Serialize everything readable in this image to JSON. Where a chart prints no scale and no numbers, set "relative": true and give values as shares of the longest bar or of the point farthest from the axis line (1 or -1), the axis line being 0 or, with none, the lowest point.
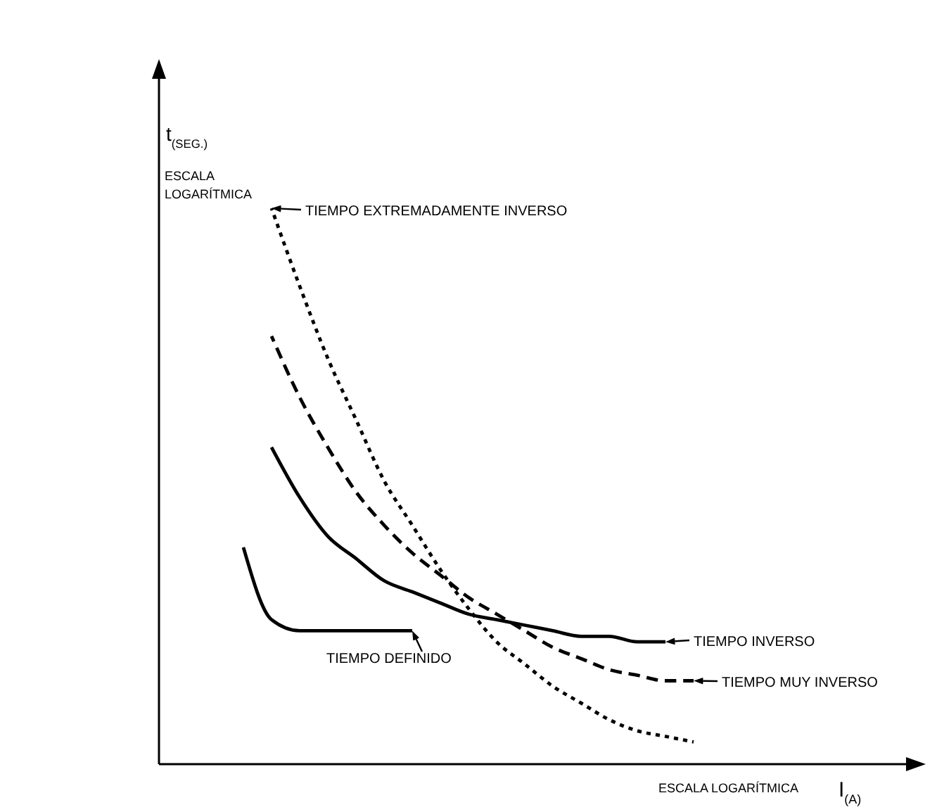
{
  "chart_data": {
    "type": "line",
    "relative": true,
    "xlabel": "I$_{(A)}$",
    "ylabel": "t$_{(SEG.)}$",
    "annotations": [
      "ESCALA\nLOGARÍTMICA",
      "ESCALA LOGARÍTMICA"
    ],
    "legend": "right",
    "categories": [
      null,
      null,
      null,
      null,
      null,
      null,
      null,
      null,
      null,
      null,
      null,
      null,
      null,
      null,
      null,
      null,
      null,
      null,
      null,
      null,
      null
    ],
    "series": [
      {
        "name": "TIEMPO EXTREMADAMENTE INVERSO",
        "color": "#000000",
        "line_style": "dotted",
        "values": [
          null,
          null,
          null,
          null,
          1.0,
          0.86,
          0.73,
          0.62,
          0.51,
          0.43,
          0.35,
          0.28,
          0.22,
          0.18,
          0.14,
          0.11,
          0.08,
          0.06,
          0.05,
          0.04,
          null
        ]
      },
      {
        "name": "TIEMPO MUY INVERSO",
        "color": "#000000",
        "line_style": "dashed",
        "values": [
          null,
          null,
          null,
          null,
          0.77,
          0.66,
          0.57,
          0.49,
          0.43,
          0.38,
          0.34,
          0.3,
          0.27,
          0.24,
          0.21,
          0.19,
          0.17,
          0.16,
          0.15,
          0.15,
          null
        ]
      },
      {
        "name": "TIEMPO INVERSO",
        "color": "#000000",
        "line_style": "solid",
        "values": [
          null,
          null,
          null,
          null,
          0.57,
          0.48,
          0.41,
          0.37,
          0.33,
          0.31,
          0.29,
          0.27,
          0.26,
          0.25,
          0.24,
          0.23,
          0.23,
          0.22,
          0.22,
          null,
          null
        ]
      },
      {
        "name": "TIEMPO DEFINIDO",
        "color": "#000000",
        "line_style": "solid",
        "values": [
          null,
          null,
          null,
          0.39,
          0.26,
          0.24,
          0.24,
          0.24,
          0.24,
          0.24,
          null,
          null,
          null,
          null,
          null,
          null,
          null,
          null,
          null,
          null,
          null
        ]
      }
    ]
  }
}
